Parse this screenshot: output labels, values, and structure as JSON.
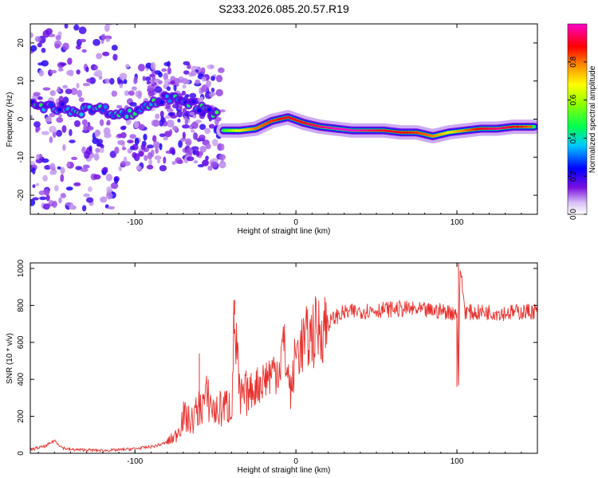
{
  "title": "S233.2026.085.20.57.R19",
  "chart_data": [
    {
      "type": "heatmap",
      "xlabel": "Height of straight line (km)",
      "ylabel": "Frequency (Hz)",
      "xlim": [
        -165,
        150
      ],
      "ylim": [
        -25,
        25
      ],
      "xticks": [
        -100,
        0,
        100
      ],
      "yticks": [
        -20,
        -10,
        0,
        10,
        20
      ],
      "colorbar": {
        "label": "Normalized spectral amplitude",
        "ticks": [
          0.0,
          0.2,
          0.4,
          0.6,
          0.8
        ],
        "range": [
          0,
          1
        ],
        "stops": [
          "#ffffff",
          "#c8a8f0",
          "#6a00e0",
          "#0000ff",
          "#00c8ff",
          "#00ff60",
          "#a0ff00",
          "#ffff00",
          "#ff8000",
          "#ff0000",
          "#ff00c0"
        ]
      },
      "ridge": {
        "description_points_x": [
          -45,
          -35,
          -25,
          -15,
          -5,
          5,
          15,
          25,
          35,
          45,
          55,
          65,
          75,
          85,
          95,
          105,
          115,
          125,
          135,
          148
        ],
        "frequency_y": [
          -3,
          -3,
          -2.5,
          -0.5,
          0.5,
          -1,
          -2,
          -2.5,
          -3,
          -3,
          -3,
          -3.5,
          -3.5,
          -4.5,
          -3.5,
          -3,
          -2.5,
          -2.5,
          -2,
          -2
        ],
        "amplitude": [
          0.5,
          0.7,
          0.8,
          0.85,
          0.9,
          0.9,
          0.95,
          1.0,
          1.0,
          0.95,
          0.9,
          0.9,
          0.85,
          0.8,
          0.7,
          0.8,
          0.9,
          0.95,
          0.9,
          0.8
        ]
      },
      "noisy_region": {
        "x_range": [
          -165,
          -45
        ],
        "line_x": [
          -165,
          -155,
          -145,
          -135,
          -125,
          -115,
          -105,
          -95,
          -85,
          -75,
          -65,
          -55,
          -48
        ],
        "line_y": [
          4,
          3,
          3,
          2,
          3,
          2,
          1,
          3,
          5,
          6,
          4,
          2,
          1
        ]
      }
    },
    {
      "type": "line",
      "xlabel": "Height of straight line (km)",
      "ylabel": "SNR (10 * v/v)",
      "xlim": [
        -165,
        150
      ],
      "ylim": [
        0,
        1030
      ],
      "xticks": [
        -100,
        0,
        100
      ],
      "yticks": [
        0,
        200,
        400,
        600,
        800,
        1000
      ],
      "color": "#e8312e",
      "series_x": [
        -165,
        -155,
        -150,
        -145,
        -140,
        -130,
        -120,
        -110,
        -100,
        -95,
        -90,
        -85,
        -80,
        -75,
        -72,
        -70,
        -65,
        -60,
        -55,
        -50,
        -45,
        -40,
        -38,
        -35,
        -30,
        -25,
        -20,
        -15,
        -10,
        -8,
        -5,
        -3,
        0,
        5,
        10,
        15,
        20,
        25,
        30,
        40,
        50,
        60,
        70,
        80,
        90,
        95,
        100,
        101,
        102,
        105,
        110,
        120,
        130,
        140,
        150
      ],
      "series_y": [
        20,
        40,
        70,
        30,
        20,
        18,
        15,
        18,
        25,
        30,
        35,
        45,
        60,
        90,
        150,
        200,
        170,
        250,
        300,
        220,
        250,
        260,
        750,
        280,
        320,
        360,
        400,
        440,
        470,
        600,
        430,
        320,
        550,
        600,
        640,
        680,
        700,
        740,
        760,
        770,
        775,
        780,
        780,
        770,
        770,
        765,
        760,
        380,
        1020,
        770,
        760,
        765,
        760,
        765,
        770
      ],
      "spikes": [
        {
          "x": -150,
          "y": 70
        },
        {
          "x": -60,
          "y": 540
        },
        {
          "x": -38,
          "y": 830
        },
        {
          "x": -8,
          "y": 620
        },
        {
          "x": 101,
          "y": 1030
        },
        {
          "x": 100,
          "y": 360
        }
      ]
    }
  ]
}
